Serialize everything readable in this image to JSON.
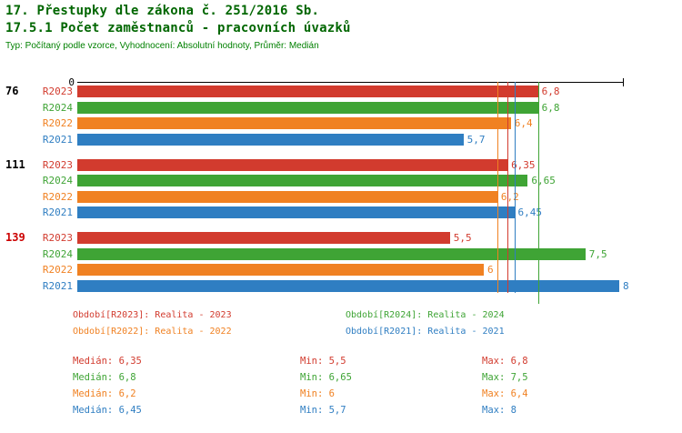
{
  "header": {
    "title1": "17. Přestupky dle zákona č. 251/2016 Sb.",
    "title2": "17.5.1 Počet zaměstnanců - pracovních úvazků",
    "subtitle": "Typ: Počítaný podle vzorce, Vyhodnocení: Absolutní hodnoty, Průměr: Medián"
  },
  "colors": {
    "title": "#006600",
    "subtitle": "#008000",
    "R2023": "#d23b2e",
    "R2024": "#3fa435",
    "R2022": "#f08122",
    "R2021": "#2f7ec2",
    "axis": "#000000",
    "group_label_default": "#000000",
    "group_label_alert": "#cc0000"
  },
  "chart_data": {
    "type": "bar",
    "orientation": "horizontal",
    "title": "17.5.1 Počet zaměstnanců - pracovních úvazků",
    "x_axis": {
      "min": 0,
      "max": 8,
      "origin_label": "0"
    },
    "series_names": [
      "R2023",
      "R2024",
      "R2022",
      "R2021"
    ],
    "groups": [
      {
        "label": "76",
        "label_color": "#000000",
        "bars": [
          {
            "series": "R2023",
            "value": 6.8,
            "value_label": "6,8"
          },
          {
            "series": "R2024",
            "value": 6.8,
            "value_label": "6,8"
          },
          {
            "series": "R2022",
            "value": 6.4,
            "value_label": "6,4"
          },
          {
            "series": "R2021",
            "value": 5.7,
            "value_label": "5,7"
          }
        ]
      },
      {
        "label": "111",
        "label_color": "#000000",
        "bars": [
          {
            "series": "R2023",
            "value": 6.35,
            "value_label": "6,35"
          },
          {
            "series": "R2024",
            "value": 6.65,
            "value_label": "6,65"
          },
          {
            "series": "R2022",
            "value": 6.2,
            "value_label": "6,2"
          },
          {
            "series": "R2021",
            "value": 6.45,
            "value_label": "6,45"
          }
        ]
      },
      {
        "label": "139",
        "label_color": "#cc0000",
        "bars": [
          {
            "series": "R2023",
            "value": 5.5,
            "value_label": "5,5"
          },
          {
            "series": "R2024",
            "value": 7.5,
            "value_label": "7,5"
          },
          {
            "series": "R2022",
            "value": 6.0,
            "value_label": "6"
          },
          {
            "series": "R2021",
            "value": 8.0,
            "value_label": "8"
          }
        ]
      }
    ],
    "median_lines": [
      {
        "series": "R2023",
        "value": 6.35
      },
      {
        "series": "R2024",
        "value": 6.8
      },
      {
        "series": "R2022",
        "value": 6.2
      },
      {
        "series": "R2021",
        "value": 6.45
      }
    ]
  },
  "legend": [
    {
      "series": "R2023",
      "label": "Období[R2023]: Realita - 2023"
    },
    {
      "series": "R2024",
      "label": "Období[R2024]: Realita - 2024"
    },
    {
      "series": "R2022",
      "label": "Období[R2022]: Realita - 2022"
    },
    {
      "series": "R2021",
      "label": "Období[R2021]: Realita - 2021"
    }
  ],
  "stats": [
    {
      "series": "R2023",
      "median": "Medián: 6,35",
      "min": "Min: 5,5",
      "max": "Max: 6,8"
    },
    {
      "series": "R2024",
      "median": "Medián: 6,8",
      "min": "Min: 6,65",
      "max": "Max: 7,5"
    },
    {
      "series": "R2022",
      "median": "Medián: 6,2",
      "min": "Min: 6",
      "max": "Max: 6,4"
    },
    {
      "series": "R2021",
      "median": "Medián: 6,45",
      "min": "Min: 5,7",
      "max": "Max: 8"
    }
  ]
}
